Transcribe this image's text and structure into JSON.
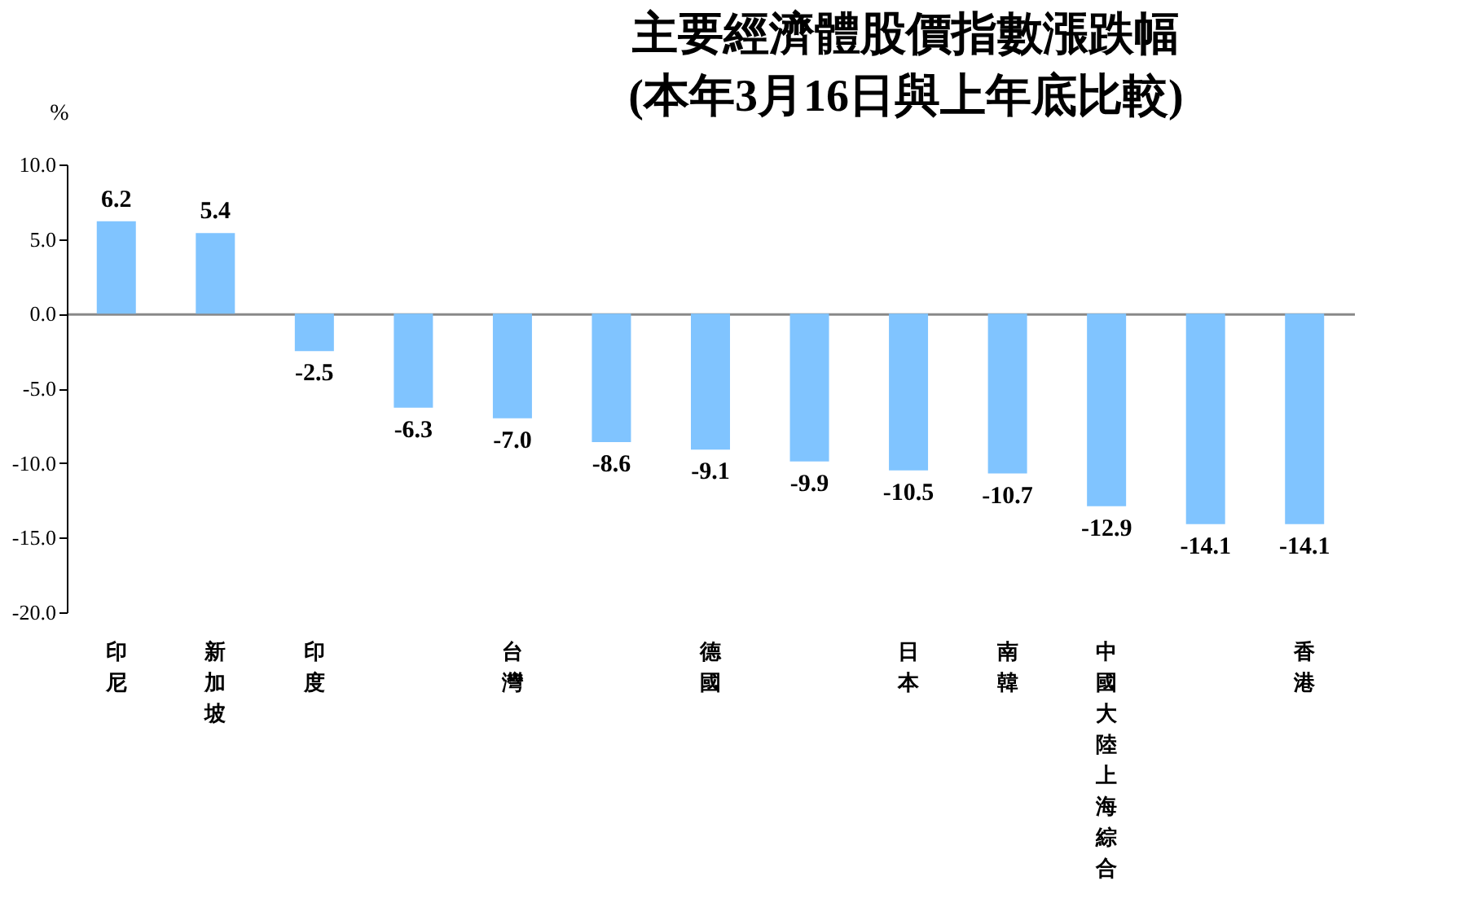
{
  "chart_data": {
    "type": "bar",
    "title": [
      "主要經濟體股價指數漲跌幅",
      "(本年3月16日與上年底比較)"
    ],
    "ylabel": "%",
    "categories": [
      "印尼",
      "新加坡",
      "印度",
      null,
      "台灣",
      null,
      "德國",
      null,
      "日本",
      "南韓",
      "中國大陸上海綜合",
      null,
      "香港"
    ],
    "values": [
      6.2,
      5.4,
      -2.5,
      -6.3,
      -7.0,
      -8.6,
      -9.1,
      -9.9,
      -10.5,
      -10.7,
      -12.9,
      -14.1,
      -14.1
    ],
    "value_labels": [
      "6.2",
      "5.4",
      "-2.5",
      "-6.3",
      "-7.0",
      "-8.6",
      "-9.1",
      "-9.9",
      "-10.5",
      "-10.7",
      "-12.9",
      "-14.1",
      "-14.1"
    ],
    "color": "#80c4ff",
    "ylim": [
      -20,
      10
    ],
    "yticks": [
      {
        "value": -20,
        "label": "-20.0"
      },
      {
        "value": -15,
        "label": "-15.0"
      },
      {
        "value": -10,
        "label": "-10.0"
      },
      {
        "value": -5,
        "label": "-5.0"
      },
      {
        "value": 0,
        "label": "0.0"
      },
      {
        "value": 5,
        "label": "5.0"
      },
      {
        "value": 10,
        "label": "10.0"
      }
    ]
  }
}
